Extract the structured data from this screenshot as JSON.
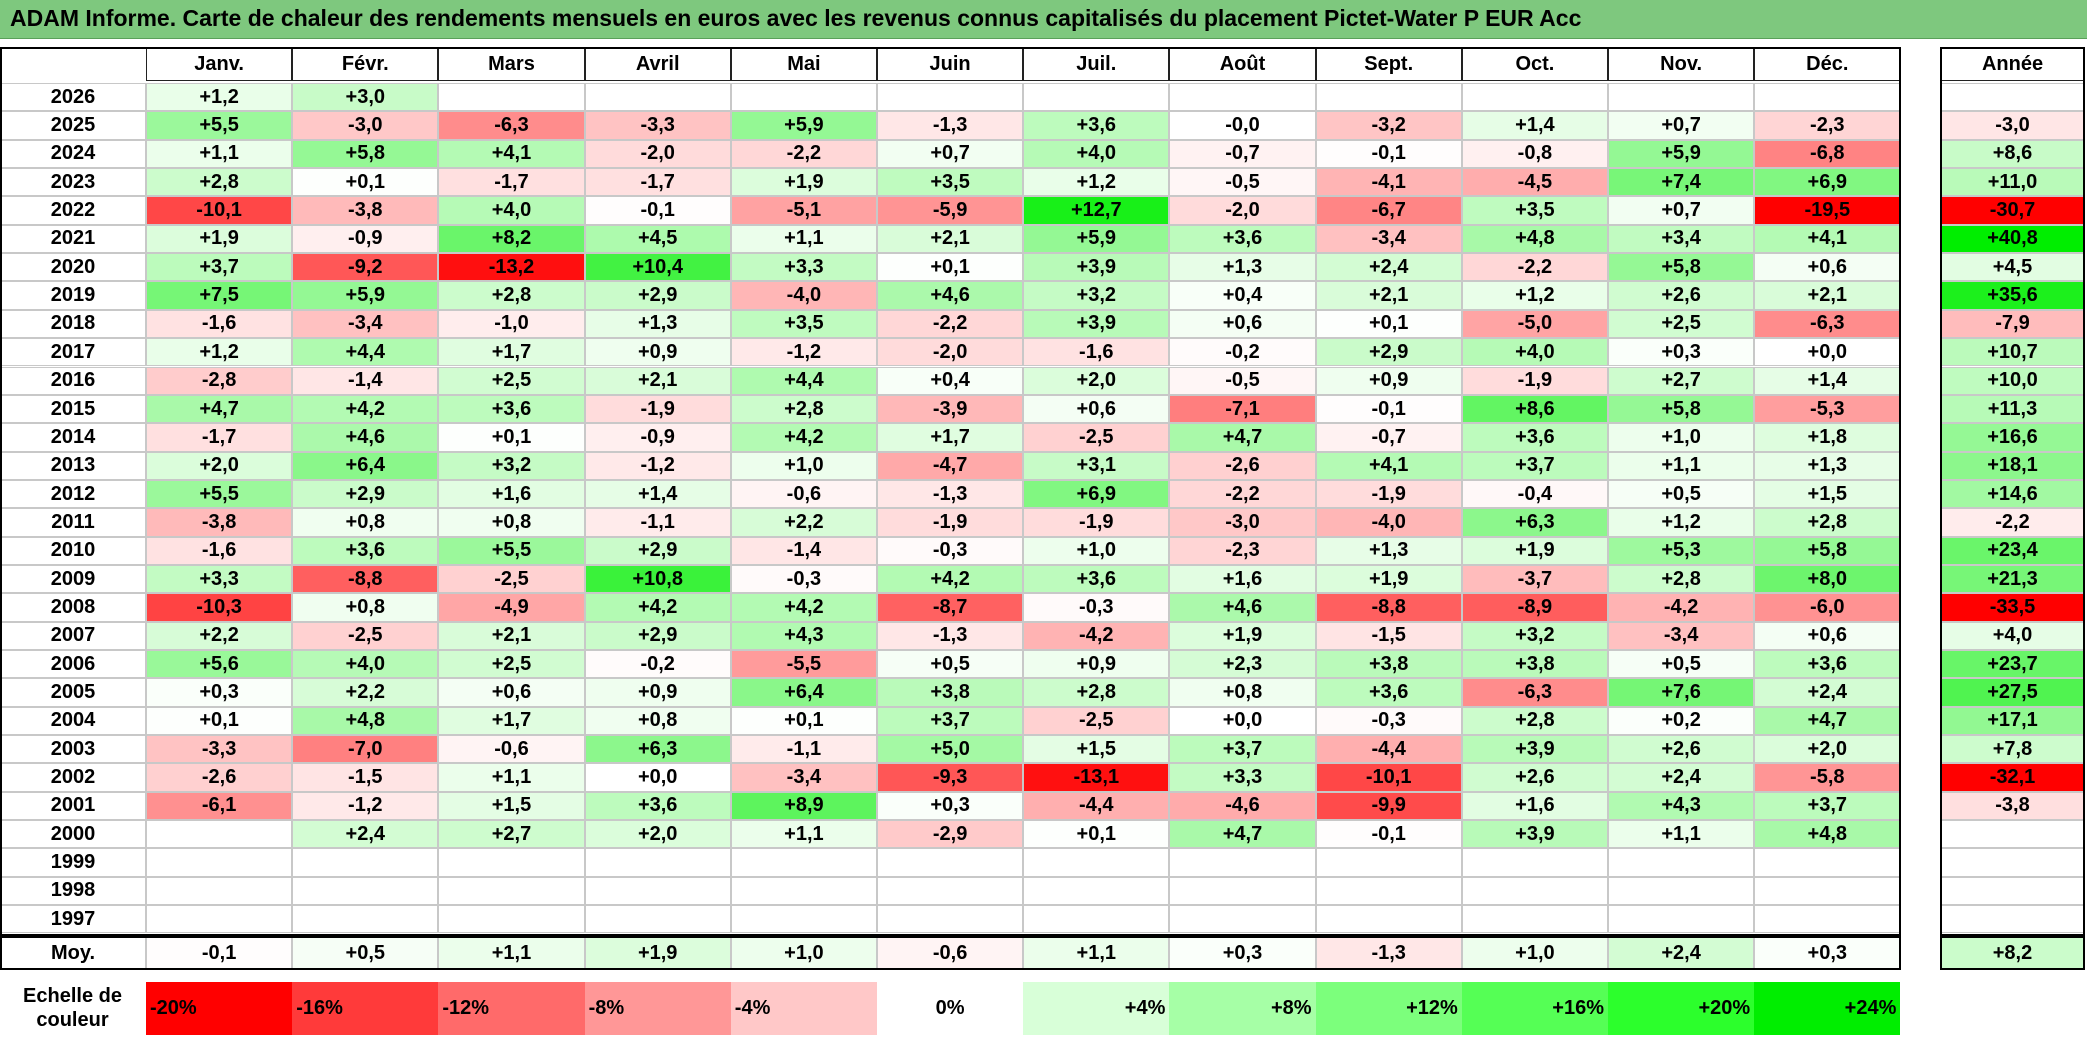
{
  "title": "ADAM Informe. Carte de chaleur des rendements mensuels en euros avec les revenus connus capitalisés du placement Pictet-Water P EUR Acc",
  "chart_data": {
    "type": "heatmap",
    "columns": [
      "Janv.",
      "Févr.",
      "Mars",
      "Avril",
      "Mai",
      "Juin",
      "Juil.",
      "Août",
      "Sept.",
      "Oct.",
      "Nov.",
      "Déc."
    ],
    "annual_header": "Année",
    "rows": [
      {
        "year": "2026",
        "months": [
          "+1,2",
          "+3,0",
          "",
          "",
          "",
          "",
          "",
          "",
          "",
          "",
          "",
          ""
        ],
        "annual": ""
      },
      {
        "year": "2025",
        "months": [
          "+5,5",
          "-3,0",
          "-6,3",
          "-3,3",
          "+5,9",
          "-1,3",
          "+3,6",
          "-0,0",
          "-3,2",
          "+1,4",
          "+0,7",
          "-2,3"
        ],
        "annual": "-3,0"
      },
      {
        "year": "2024",
        "months": [
          "+1,1",
          "+5,8",
          "+4,1",
          "-2,0",
          "-2,2",
          "+0,7",
          "+4,0",
          "-0,7",
          "-0,1",
          "-0,8",
          "+5,9",
          "-6,8"
        ],
        "annual": "+8,6"
      },
      {
        "year": "2023",
        "months": [
          "+2,8",
          "+0,1",
          "-1,7",
          "-1,7",
          "+1,9",
          "+3,5",
          "+1,2",
          "-0,5",
          "-4,1",
          "-4,5",
          "+7,4",
          "+6,9"
        ],
        "annual": "+11,0"
      },
      {
        "year": "2022",
        "months": [
          "-10,1",
          "-3,8",
          "+4,0",
          "-0,1",
          "-5,1",
          "-5,9",
          "+12,7",
          "-2,0",
          "-6,7",
          "+3,5",
          "+0,7",
          "-19,5"
        ],
        "annual": "-30,7"
      },
      {
        "year": "2021",
        "months": [
          "+1,9",
          "-0,9",
          "+8,2",
          "+4,5",
          "+1,1",
          "+2,1",
          "+5,9",
          "+3,6",
          "-3,4",
          "+4,8",
          "+3,4",
          "+4,1"
        ],
        "annual": "+40,8"
      },
      {
        "year": "2020",
        "months": [
          "+3,7",
          "-9,2",
          "-13,2",
          "+10,4",
          "+3,3",
          "+0,1",
          "+3,9",
          "+1,3",
          "+2,4",
          "-2,2",
          "+5,8",
          "+0,6"
        ],
        "annual": "+4,5"
      },
      {
        "year": "2019",
        "months": [
          "+7,5",
          "+5,9",
          "+2,8",
          "+2,9",
          "-4,0",
          "+4,6",
          "+3,2",
          "+0,4",
          "+2,1",
          "+1,2",
          "+2,6",
          "+2,1"
        ],
        "annual": "+35,6"
      },
      {
        "year": "2018",
        "months": [
          "-1,6",
          "-3,4",
          "-1,0",
          "+1,3",
          "+3,5",
          "-2,2",
          "+3,9",
          "+0,6",
          "+0,1",
          "-5,0",
          "+2,5",
          "-6,3"
        ],
        "annual": "-7,9"
      },
      {
        "year": "2017",
        "months": [
          "+1,2",
          "+4,4",
          "+1,7",
          "+0,9",
          "-1,2",
          "-2,0",
          "-1,6",
          "-0,2",
          "+2,9",
          "+4,0",
          "+0,3",
          "+0,0"
        ],
        "annual": "+10,7"
      },
      {
        "year": "2016",
        "months": [
          "-2,8",
          "-1,4",
          "+2,5",
          "+2,1",
          "+4,4",
          "+0,4",
          "+2,0",
          "-0,5",
          "+0,9",
          "-1,9",
          "+2,7",
          "+1,4"
        ],
        "annual": "+10,0"
      },
      {
        "year": "2015",
        "months": [
          "+4,7",
          "+4,2",
          "+3,6",
          "-1,9",
          "+2,8",
          "-3,9",
          "+0,6",
          "-7,1",
          "-0,1",
          "+8,6",
          "+5,8",
          "-5,3"
        ],
        "annual": "+11,3"
      },
      {
        "year": "2014",
        "months": [
          "-1,7",
          "+4,6",
          "+0,1",
          "-0,9",
          "+4,2",
          "+1,7",
          "-2,5",
          "+4,7",
          "-0,7",
          "+3,6",
          "+1,0",
          "+1,8"
        ],
        "annual": "+16,6"
      },
      {
        "year": "2013",
        "months": [
          "+2,0",
          "+6,4",
          "+3,2",
          "-1,2",
          "+1,0",
          "-4,7",
          "+3,1",
          "-2,6",
          "+4,1",
          "+3,7",
          "+1,1",
          "+1,3"
        ],
        "annual": "+18,1"
      },
      {
        "year": "2012",
        "months": [
          "+5,5",
          "+2,9",
          "+1,6",
          "+1,4",
          "-0,6",
          "-1,3",
          "+6,9",
          "-2,2",
          "-1,9",
          "-0,4",
          "+0,5",
          "+1,5"
        ],
        "annual": "+14,6"
      },
      {
        "year": "2011",
        "months": [
          "-3,8",
          "+0,8",
          "+0,8",
          "-1,1",
          "+2,2",
          "-1,9",
          "-1,9",
          "-3,0",
          "-4,0",
          "+6,3",
          "+1,2",
          "+2,8"
        ],
        "annual": "-2,2"
      },
      {
        "year": "2010",
        "months": [
          "-1,6",
          "+3,6",
          "+5,5",
          "+2,9",
          "-1,4",
          "-0,3",
          "+1,0",
          "-2,3",
          "+1,3",
          "+1,9",
          "+5,3",
          "+5,8"
        ],
        "annual": "+23,4"
      },
      {
        "year": "2009",
        "months": [
          "+3,3",
          "-8,8",
          "-2,5",
          "+10,8",
          "-0,3",
          "+4,2",
          "+3,6",
          "+1,6",
          "+1,9",
          "-3,7",
          "+2,8",
          "+8,0"
        ],
        "annual": "+21,3"
      },
      {
        "year": "2008",
        "months": [
          "-10,3",
          "+0,8",
          "-4,9",
          "+4,2",
          "+4,2",
          "-8,7",
          "-0,3",
          "+4,6",
          "-8,8",
          "-8,9",
          "-4,2",
          "-6,0"
        ],
        "annual": "-33,5"
      },
      {
        "year": "2007",
        "months": [
          "+2,2",
          "-2,5",
          "+2,1",
          "+2,9",
          "+4,3",
          "-1,3",
          "-4,2",
          "+1,9",
          "-1,5",
          "+3,2",
          "-3,4",
          "+0,6"
        ],
        "annual": "+4,0"
      },
      {
        "year": "2006",
        "months": [
          "+5,6",
          "+4,0",
          "+2,5",
          "-0,2",
          "-5,5",
          "+0,5",
          "+0,9",
          "+2,3",
          "+3,8",
          "+3,8",
          "+0,5",
          "+3,6"
        ],
        "annual": "+23,7"
      },
      {
        "year": "2005",
        "months": [
          "+0,3",
          "+2,2",
          "+0,6",
          "+0,9",
          "+6,4",
          "+3,8",
          "+2,8",
          "+0,8",
          "+3,6",
          "-6,3",
          "+7,6",
          "+2,4"
        ],
        "annual": "+27,5"
      },
      {
        "year": "2004",
        "months": [
          "+0,1",
          "+4,8",
          "+1,7",
          "+0,8",
          "+0,1",
          "+3,7",
          "-2,5",
          "+0,0",
          "-0,3",
          "+2,8",
          "+0,2",
          "+4,7"
        ],
        "annual": "+17,1"
      },
      {
        "year": "2003",
        "months": [
          "-3,3",
          "-7,0",
          "-0,6",
          "+6,3",
          "-1,1",
          "+5,0",
          "+1,5",
          "+3,7",
          "-4,4",
          "+3,9",
          "+2,6",
          "+2,0"
        ],
        "annual": "+7,8"
      },
      {
        "year": "2002",
        "months": [
          "-2,6",
          "-1,5",
          "+1,1",
          "+0,0",
          "-3,4",
          "-9,3",
          "-13,1",
          "+3,3",
          "-10,1",
          "+2,6",
          "+2,4",
          "-5,8"
        ],
        "annual": "-32,1"
      },
      {
        "year": "2001",
        "months": [
          "-6,1",
          "-1,2",
          "+1,5",
          "+3,6",
          "+8,9",
          "+0,3",
          "-4,4",
          "-4,6",
          "-9,9",
          "+1,6",
          "+4,3",
          "+3,7"
        ],
        "annual": "-3,8"
      },
      {
        "year": "2000",
        "months": [
          "",
          "+2,4",
          "+2,7",
          "+2,0",
          "+1,1",
          "-2,9",
          "+0,1",
          "+4,7",
          "-0,1",
          "+3,9",
          "+1,1",
          "+4,8"
        ],
        "annual": ""
      },
      {
        "year": "1999",
        "months": [
          "",
          "",
          "",
          "",
          "",
          "",
          "",
          "",
          "",
          "",
          "",
          ""
        ],
        "annual": ""
      },
      {
        "year": "1998",
        "months": [
          "",
          "",
          "",
          "",
          "",
          "",
          "",
          "",
          "",
          "",
          "",
          ""
        ],
        "annual": ""
      },
      {
        "year": "1997",
        "months": [
          "",
          "",
          "",
          "",
          "",
          "",
          "",
          "",
          "",
          "",
          "",
          ""
        ],
        "annual": ""
      }
    ],
    "average_label": "Moy.",
    "averages": [
      "-0,1",
      "+0,5",
      "+1,1",
      "+1,9",
      "+1,0",
      "-0,6",
      "+1,1",
      "+0,3",
      "-1,3",
      "+1,0",
      "+2,4",
      "+0,3"
    ],
    "average_annual": "+8,2",
    "scale_label_line1": "Echelle de",
    "scale_label_line2": "couleur",
    "scale": [
      {
        "label": "-20%",
        "value": -20,
        "color": "#ff0000"
      },
      {
        "label": "-16%",
        "value": -16,
        "color": "#ff3a3a"
      },
      {
        "label": "-12%",
        "value": -12,
        "color": "#ff6a6a"
      },
      {
        "label": "-8%",
        "value": -8,
        "color": "#ff9797"
      },
      {
        "label": "-4%",
        "value": -4,
        "color": "#ffc8c8"
      },
      {
        "label": "0%",
        "value": 0,
        "color": "#ffffff"
      },
      {
        "label": "+4%",
        "value": 4,
        "color": "#d8ffd8"
      },
      {
        "label": "+8%",
        "value": 8,
        "color": "#a6ffa6"
      },
      {
        "label": "+12%",
        "value": 12,
        "color": "#7cff7c"
      },
      {
        "label": "+16%",
        "value": 16,
        "color": "#55ff55"
      },
      {
        "label": "+20%",
        "value": 20,
        "color": "#2cff2c"
      },
      {
        "label": "+24%",
        "value": 24,
        "color": "#00ee00"
      }
    ]
  }
}
